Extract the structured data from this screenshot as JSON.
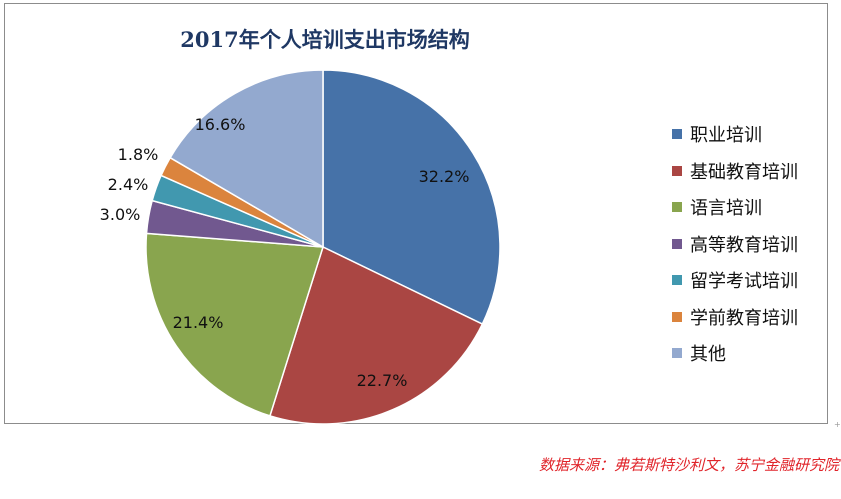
{
  "chart_data": {
    "type": "pie",
    "title": "2017年个人培训支出市场结构",
    "slices": [
      {
        "label": "职业培训",
        "value": 32.2,
        "display": "32.2%",
        "color": "#4672a8"
      },
      {
        "label": "基础教育培训",
        "value": 22.7,
        "display": "22.7%",
        "color": "#aa4643"
      },
      {
        "label": "语言培训",
        "value": 21.4,
        "display": "21.4%",
        "color": "#89a54e"
      },
      {
        "label": "高等教育培训",
        "value": 3.0,
        "display": "3.0%",
        "color": "#71588f"
      },
      {
        "label": "留学考试培训",
        "value": 2.4,
        "display": "2.4%",
        "color": "#4198af"
      },
      {
        "label": "学前教育培训",
        "value": 1.8,
        "display": "1.8%",
        "color": "#db843d"
      },
      {
        "label": "其他",
        "value": 16.6,
        "display": "16.6%",
        "color": "#93a9cf"
      }
    ],
    "legend_position": "right"
  },
  "source_note": "数据来源：弗若斯特沙利文，苏宁金融研究院",
  "corner_mark": "+"
}
